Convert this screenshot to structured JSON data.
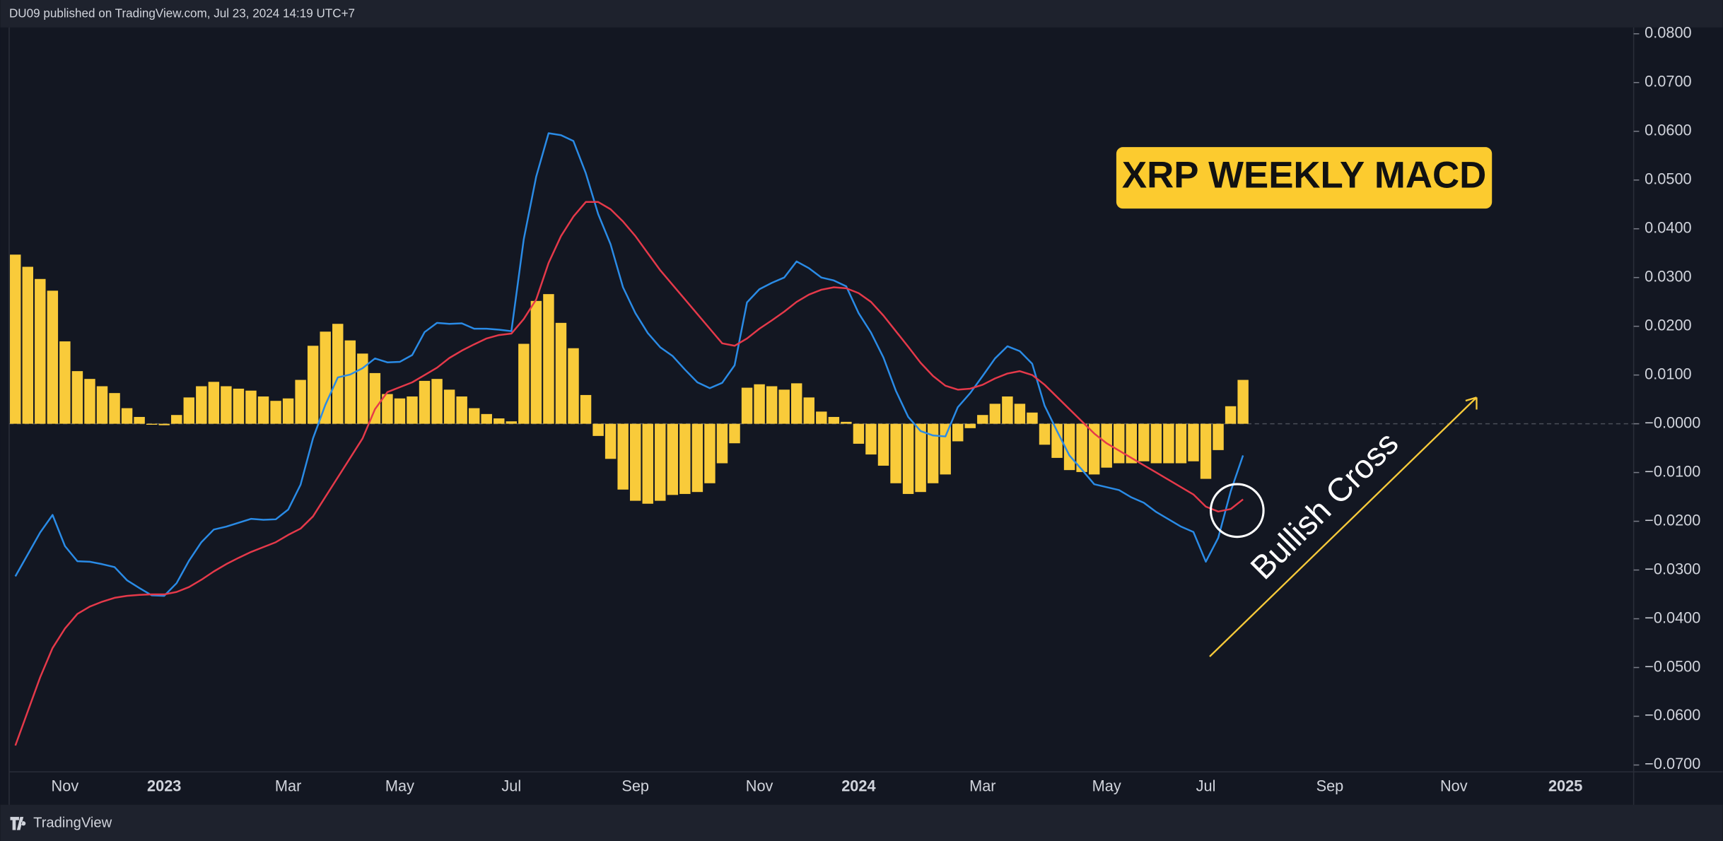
{
  "chart_data": {
    "type": "macd",
    "header": "DU09 published on TradingView.com, Jul 23, 2024 14:19 UTC+7",
    "footer": "TradingView",
    "title": "XRP WEEKLY MACD",
    "annotations": [
      "Bullish Cross"
    ],
    "categories": [
      null,
      null,
      null,
      null,
      "Nov",
      null,
      null,
      null,
      null,
      null,
      null,
      null,
      "2023",
      null,
      null,
      null,
      null,
      null,
      null,
      null,
      null,
      null,
      "Mar",
      null,
      null,
      null,
      null,
      null,
      null,
      null,
      null,
      "May",
      null,
      null,
      null,
      null,
      null,
      null,
      null,
      null,
      "Jul",
      null,
      null,
      null,
      null,
      null,
      null,
      null,
      null,
      null,
      "Sep",
      null,
      null,
      null,
      null,
      null,
      null,
      null,
      null,
      null,
      "Nov",
      null,
      null,
      null,
      null,
      null,
      null,
      null,
      "2024",
      null,
      null,
      null,
      null,
      null,
      null,
      null,
      null,
      null,
      "Mar",
      null,
      null,
      null,
      null,
      null,
      null,
      null,
      null,
      null,
      "May",
      null,
      null,
      null,
      null,
      null,
      null,
      null,
      "Jul",
      null,
      null,
      null,
      null,
      null,
      null,
      null,
      null,
      null,
      "Sep",
      null,
      null,
      null,
      null,
      null,
      null,
      null,
      null,
      null,
      "Nov",
      null,
      null,
      null,
      null,
      null,
      null,
      null,
      null,
      "2025",
      null,
      null,
      null,
      null,
      null
    ],
    "series": [
      {
        "type": "bar",
        "color": "#f9cb3a",
        "values": [
          0.0347,
          0.0322,
          0.0297,
          0.0273,
          0.0169,
          0.0108,
          0.0092,
          0.0077,
          0.0063,
          0.0032,
          0.0014,
          -0.0002,
          -0.0003,
          0.0018,
          0.0054,
          0.0077,
          0.0086,
          0.0077,
          0.0072,
          0.0068,
          0.0056,
          0.0047,
          0.0052,
          0.009,
          0.016,
          0.0189,
          0.0205,
          0.0171,
          0.0144,
          0.0104,
          0.0061,
          0.0052,
          0.0056,
          0.0088,
          0.0092,
          0.007,
          0.0056,
          0.0032,
          0.002,
          0.0011,
          0.0005,
          0.0164,
          0.0252,
          0.0266,
          0.0207,
          0.0155,
          0.0059,
          -0.0025,
          -0.0072,
          -0.0135,
          -0.0158,
          -0.0164,
          -0.0158,
          -0.0146,
          -0.0144,
          -0.014,
          -0.0122,
          -0.0081,
          -0.004,
          0.0074,
          0.0081,
          0.0077,
          0.007,
          0.0083,
          0.0054,
          0.0025,
          0.0014,
          0.0004,
          -0.0041,
          -0.0063,
          -0.0086,
          -0.0122,
          -0.0144,
          -0.014,
          -0.0122,
          -0.0104,
          -0.0036,
          -0.0009,
          0.0018,
          0.0041,
          0.0056,
          0.0041,
          0.0023,
          -0.0043,
          -0.007,
          -0.0095,
          -0.0099,
          -0.0104,
          -0.009,
          -0.0081,
          -0.0081,
          -0.0077,
          -0.0081,
          -0.0081,
          -0.0081,
          -0.0077,
          -0.0113,
          -0.0054,
          0.0036,
          0.009,
          null,
          null,
          null,
          null,
          null,
          null,
          null,
          null,
          null,
          null,
          null,
          null,
          null,
          null,
          null,
          null,
          null,
          null,
          null,
          null,
          null,
          null,
          null,
          null,
          null,
          null,
          null,
          null,
          null,
          null,
          null
        ]
      },
      {
        "type": "line",
        "color": "#2a8be6",
        "values": [
          -0.0313,
          -0.0268,
          -0.0223,
          -0.0187,
          -0.0251,
          -0.0282,
          -0.0283,
          -0.0288,
          -0.0294,
          -0.0321,
          -0.0337,
          -0.0352,
          -0.0353,
          -0.0327,
          -0.0281,
          -0.0243,
          -0.0217,
          -0.0211,
          -0.0203,
          -0.0195,
          -0.0197,
          -0.0196,
          -0.0176,
          -0.0125,
          -0.003,
          0.0039,
          0.0095,
          0.0101,
          0.0114,
          0.0134,
          0.0126,
          0.0127,
          0.0141,
          0.0188,
          0.0207,
          0.0205,
          0.0206,
          0.0195,
          0.0195,
          0.0193,
          0.019,
          0.0379,
          0.0507,
          0.0596,
          0.0592,
          0.058,
          0.0514,
          0.043,
          0.0368,
          0.028,
          0.0227,
          0.0186,
          0.0157,
          0.0139,
          0.0111,
          0.0085,
          0.0073,
          0.0084,
          0.012,
          0.0249,
          0.0276,
          0.0289,
          0.03,
          0.0333,
          0.0319,
          0.03,
          0.0294,
          0.0282,
          0.0227,
          0.0187,
          0.0136,
          0.0068,
          0.0014,
          -0.0015,
          -0.0024,
          -0.0026,
          0.0034,
          0.0063,
          0.0098,
          0.0134,
          0.0159,
          0.0149,
          0.0123,
          0.0037,
          -0.0015,
          -0.0065,
          -0.0094,
          -0.0124,
          -0.013,
          -0.0136,
          -0.0151,
          -0.0162,
          -0.0181,
          -0.0196,
          -0.0211,
          -0.0222,
          -0.0283,
          -0.0234,
          -0.0139,
          -0.0065,
          null,
          null,
          null,
          null,
          null,
          null,
          null,
          null,
          null,
          null,
          null,
          null,
          null,
          null,
          null,
          null,
          null,
          null,
          null,
          null,
          null,
          null,
          null,
          null,
          null,
          null,
          null,
          null,
          null,
          null,
          null
        ]
      },
      {
        "type": "line",
        "color": "#e5394a",
        "values": [
          -0.066,
          -0.059,
          -0.052,
          -0.046,
          -0.042,
          -0.039,
          -0.0375,
          -0.0365,
          -0.0357,
          -0.0353,
          -0.0351,
          -0.035,
          -0.035,
          -0.0345,
          -0.0335,
          -0.032,
          -0.0303,
          -0.0288,
          -0.0275,
          -0.0263,
          -0.0253,
          -0.0243,
          -0.0228,
          -0.0215,
          -0.019,
          -0.015,
          -0.011,
          -0.007,
          -0.003,
          0.003,
          0.0065,
          0.0075,
          0.0085,
          0.01,
          0.0115,
          0.0135,
          0.015,
          0.0163,
          0.0175,
          0.0182,
          0.0185,
          0.0215,
          0.0255,
          0.033,
          0.0385,
          0.0425,
          0.0455,
          0.0455,
          0.044,
          0.0415,
          0.0385,
          0.035,
          0.0315,
          0.0285,
          0.0255,
          0.0225,
          0.0195,
          0.0165,
          0.016,
          0.0175,
          0.0195,
          0.0212,
          0.023,
          0.025,
          0.0265,
          0.0275,
          0.028,
          0.0278,
          0.0268,
          0.025,
          0.0222,
          0.019,
          0.0158,
          0.0125,
          0.0098,
          0.0078,
          0.007,
          0.0072,
          0.008,
          0.0093,
          0.0103,
          0.0108,
          0.01,
          0.008,
          0.0055,
          0.003,
          0.0005,
          -0.002,
          -0.004,
          -0.0055,
          -0.007,
          -0.0085,
          -0.01,
          -0.0115,
          -0.013,
          -0.0145,
          -0.017,
          -0.018,
          -0.0175,
          -0.0155,
          null,
          null,
          null,
          null,
          null,
          null,
          null,
          null,
          null,
          null,
          null,
          null,
          null,
          null,
          null,
          null,
          null,
          null,
          null,
          null,
          null,
          null,
          null,
          null,
          null,
          null,
          null,
          null,
          null,
          null,
          null
        ]
      }
    ],
    "ylim": [
      -0.0714,
      0.0813
    ],
    "yticks": [
      {
        "value": 0.08,
        "label": "0.0800"
      },
      {
        "value": 0.07,
        "label": "0.0700"
      },
      {
        "value": 0.06,
        "label": "0.0600"
      },
      {
        "value": 0.05,
        "label": "0.0500"
      },
      {
        "value": 0.04,
        "label": "0.0400"
      },
      {
        "value": 0.03,
        "label": "0.0300"
      },
      {
        "value": 0.02,
        "label": "0.0200"
      },
      {
        "value": 0.01,
        "label": "0.0100"
      },
      {
        "value": 0,
        "label": "−0.0000"
      },
      {
        "value": -0.01,
        "label": "−0.0100"
      },
      {
        "value": -0.02,
        "label": "−0.0200"
      },
      {
        "value": -0.03,
        "label": "−0.0300"
      },
      {
        "value": -0.04,
        "label": "−0.0400"
      },
      {
        "value": -0.05,
        "label": "−0.0500"
      },
      {
        "value": -0.06,
        "label": "−0.0600"
      },
      {
        "value": -0.07,
        "label": "−0.0700"
      }
    ]
  }
}
